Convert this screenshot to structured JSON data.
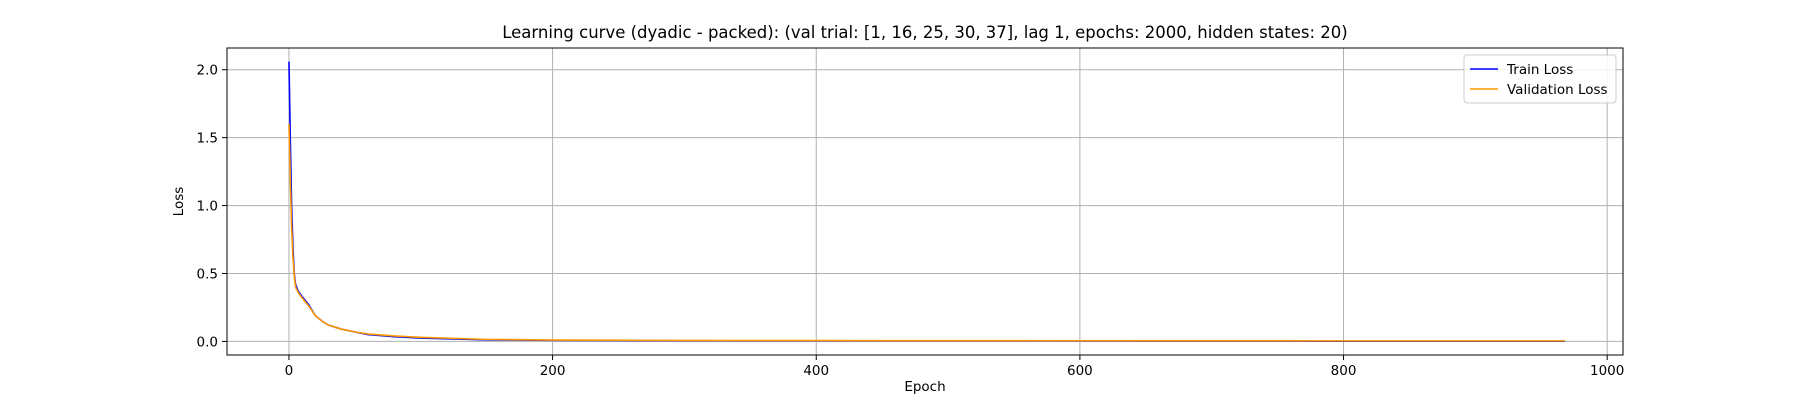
{
  "chart_data": {
    "type": "line",
    "title": "Learning curve (dyadic - packed): (val trial: [1, 16, 25, 30, 37], lag 1, epochs: 2000, hidden states: 20)",
    "xlabel": "Epoch",
    "ylabel": "Loss",
    "xlim": [
      -47,
      1012
    ],
    "ylim": [
      -0.1,
      2.16
    ],
    "grid": true,
    "legend_position": "top-right",
    "x_ticks": [
      0,
      200,
      400,
      600,
      800,
      1000
    ],
    "y_ticks": [
      0.0,
      0.5,
      1.0,
      1.5,
      2.0
    ],
    "x_tick_labels": [
      "0",
      "200",
      "400",
      "600",
      "800",
      "1000"
    ],
    "y_tick_labels": [
      "0.0",
      "0.5",
      "1.0",
      "1.5",
      "2.0"
    ],
    "series": [
      {
        "name": "Train Loss",
        "color": "#0000ff",
        "x": [
          0,
          1,
          2,
          3,
          4,
          5,
          7,
          10,
          15,
          20,
          25,
          30,
          40,
          50,
          60,
          80,
          100,
          150,
          200,
          300,
          400,
          600,
          800,
          968
        ],
        "y": [
          2.06,
          1.5,
          1.0,
          0.7,
          0.5,
          0.42,
          0.37,
          0.33,
          0.27,
          0.19,
          0.15,
          0.12,
          0.09,
          0.07,
          0.05,
          0.035,
          0.025,
          0.012,
          0.008,
          0.005,
          0.004,
          0.003,
          0.002,
          0.002
        ]
      },
      {
        "name": "Validation Loss",
        "color": "#ff9900",
        "x": [
          0,
          1,
          2,
          3,
          4,
          5,
          7,
          10,
          15,
          20,
          25,
          30,
          40,
          50,
          60,
          80,
          100,
          150,
          200,
          300,
          400,
          600,
          800,
          968
        ],
        "y": [
          1.6,
          1.2,
          0.85,
          0.62,
          0.48,
          0.4,
          0.36,
          0.32,
          0.26,
          0.19,
          0.15,
          0.12,
          0.09,
          0.07,
          0.055,
          0.04,
          0.03,
          0.015,
          0.01,
          0.007,
          0.006,
          0.005,
          0.004,
          0.004
        ]
      }
    ]
  }
}
